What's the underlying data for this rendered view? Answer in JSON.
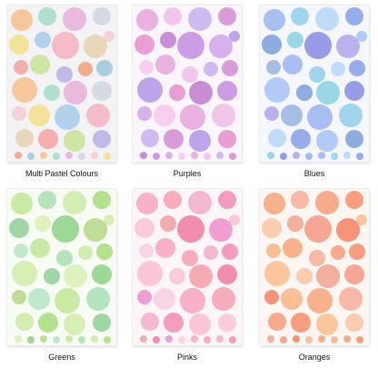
{
  "sheets": [
    {
      "caption": "Multi Pastel Colours",
      "palette": [
        "#f4a4a4",
        "#f7c08f",
        "#f3df8c",
        "#c9e39a",
        "#a5dcc8",
        "#a9cdea",
        "#b9b1e6",
        "#e7b0dc",
        "#f6b3c3",
        "#f0a07f",
        "#d2d7e0",
        "#e8d3b1",
        "#9ec8d8",
        "#f5cdd6"
      ],
      "paper_color": "#f3f2f5"
    },
    {
      "caption": "Purples",
      "palette": [
        "#d58fd4",
        "#e7a7dd",
        "#c58fe0",
        "#b39ae6",
        "#f0bfe7",
        "#d3a6ea",
        "#e592c9",
        "#c6b3ef",
        "#f6c8ee",
        "#bf7fd0"
      ],
      "paper_color": "#faf6fb"
    },
    {
      "caption": "Blues",
      "palette": [
        "#8aa3e8",
        "#9eb6f0",
        "#8b8fe2",
        "#a8c4f2",
        "#95d0ec",
        "#b2a9ec",
        "#7fa2dc",
        "#b8d7f6",
        "#9ab7e0",
        "#8ad3e2"
      ],
      "paper_color": "#f5f7fc"
    },
    {
      "caption": "Greens",
      "palette": [
        "#a8dd7f",
        "#c3e89a",
        "#8fd38a",
        "#d2ecac",
        "#a9e0b3",
        "#b7d88a",
        "#93cf9a",
        "#cde9a8",
        "#b6e5c7",
        "#d9f0b6"
      ],
      "paper_color": "#f8fcf4"
    },
    {
      "caption": "Pinks",
      "palette": [
        "#f28fb4",
        "#f7a6c4",
        "#ef7fa5",
        "#f9bfd3",
        "#f5a3b3",
        "#ec92c9",
        "#fbc4d6",
        "#f0b0c9",
        "#f7d0e0",
        "#f5a0a8"
      ],
      "paper_color": "#fdf6f8"
    },
    {
      "caption": "Oranges",
      "palette": [
        "#f7916f",
        "#f6a97e",
        "#f49b86",
        "#fbbf8f",
        "#f7b29b",
        "#f4866a",
        "#f9c6a6",
        "#f5a07e",
        "#f8b88a",
        "#f2a593"
      ],
      "paper_color": "#fdf6f2"
    }
  ]
}
